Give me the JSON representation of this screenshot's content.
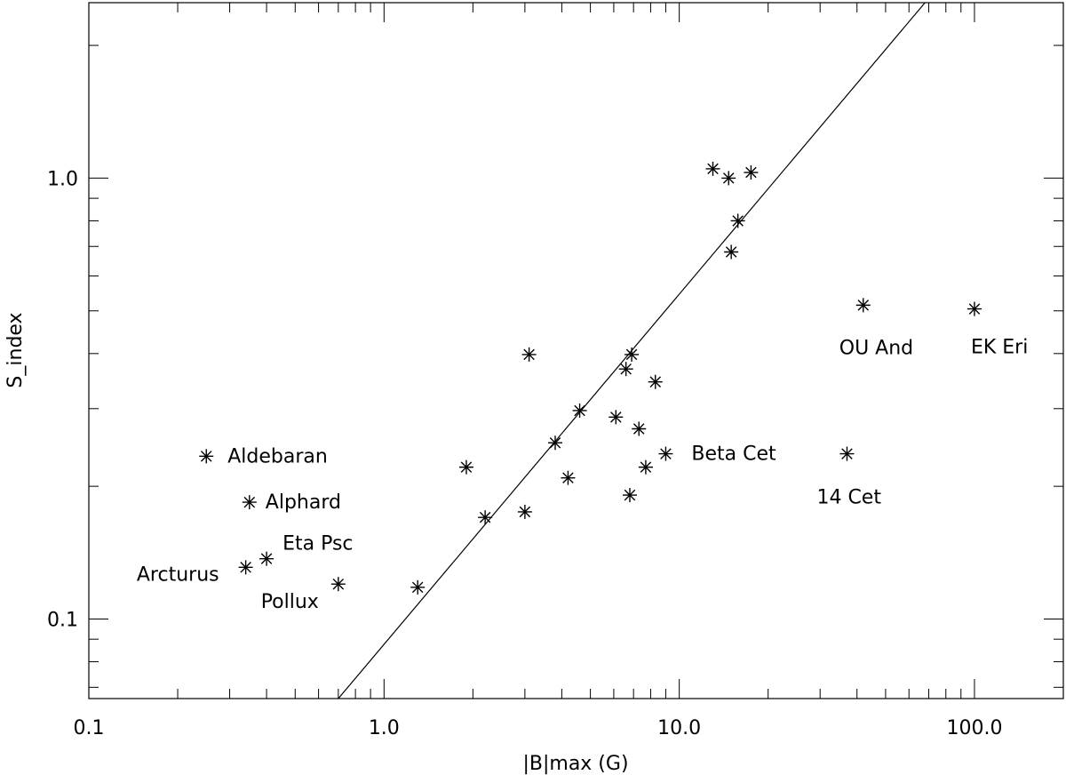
{
  "chart_data": {
    "type": "scatter",
    "xscale": "log",
    "yscale": "log",
    "xlim": [
      0.1,
      200
    ],
    "ylim": [
      0.066,
      2.5
    ],
    "xlabel": "|B|max (G)",
    "ylabel": "S_index",
    "xticks": [
      {
        "value": 0.1,
        "label": "0.1"
      },
      {
        "value": 1,
        "label": "1.0"
      },
      {
        "value": 10,
        "label": "10.0"
      },
      {
        "value": 100,
        "label": "100.0"
      }
    ],
    "yticks": [
      {
        "value": 0.1,
        "label": "0.1"
      },
      {
        "value": 1,
        "label": "1.0"
      }
    ],
    "fit_line": [
      {
        "x": 0.7,
        "y": 0.066
      },
      {
        "x": 68,
        "y": 2.5
      }
    ],
    "points": [
      {
        "x": 0.25,
        "y": 0.234,
        "label": "Aldebaran"
      },
      {
        "x": 0.35,
        "y": 0.184,
        "label": "Alphard"
      },
      {
        "x": 0.4,
        "y": 0.137,
        "label": "Eta Psc"
      },
      {
        "x": 0.34,
        "y": 0.131,
        "label": "Arcturus"
      },
      {
        "x": 0.7,
        "y": 0.12,
        "label": "Pollux"
      },
      {
        "x": 1.3,
        "y": 0.118,
        "label": ""
      },
      {
        "x": 1.9,
        "y": 0.221,
        "label": ""
      },
      {
        "x": 2.2,
        "y": 0.17,
        "label": ""
      },
      {
        "x": 3.0,
        "y": 0.175,
        "label": ""
      },
      {
        "x": 3.1,
        "y": 0.398,
        "label": ""
      },
      {
        "x": 3.8,
        "y": 0.251,
        "label": ""
      },
      {
        "x": 4.2,
        "y": 0.209,
        "label": ""
      },
      {
        "x": 4.6,
        "y": 0.297,
        "label": ""
      },
      {
        "x": 6.1,
        "y": 0.287,
        "label": ""
      },
      {
        "x": 6.6,
        "y": 0.369,
        "label": ""
      },
      {
        "x": 6.9,
        "y": 0.398,
        "label": ""
      },
      {
        "x": 6.8,
        "y": 0.191,
        "label": ""
      },
      {
        "x": 7.3,
        "y": 0.27,
        "label": ""
      },
      {
        "x": 7.7,
        "y": 0.221,
        "label": ""
      },
      {
        "x": 8.3,
        "y": 0.345,
        "label": ""
      },
      {
        "x": 9.0,
        "y": 0.237,
        "label": "Beta Cet"
      },
      {
        "x": 13.0,
        "y": 1.05,
        "label": ""
      },
      {
        "x": 14.7,
        "y": 1.0,
        "label": ""
      },
      {
        "x": 17.5,
        "y": 1.03,
        "label": ""
      },
      {
        "x": 15.8,
        "y": 0.8,
        "label": ""
      },
      {
        "x": 15.0,
        "y": 0.68,
        "label": ""
      },
      {
        "x": 37.0,
        "y": 0.237,
        "label": "14 Cet"
      },
      {
        "x": 42.0,
        "y": 0.515,
        "label": "OU And"
      },
      {
        "x": 100.0,
        "y": 0.505,
        "label": "EK Eri"
      }
    ]
  }
}
